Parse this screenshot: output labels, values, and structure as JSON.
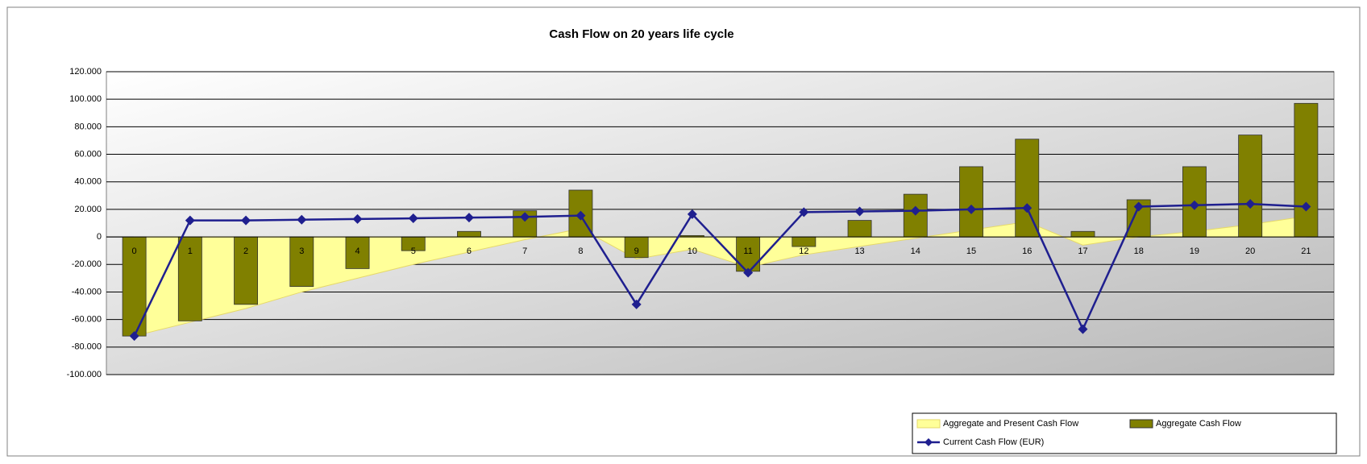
{
  "chart_data": {
    "type": "bar",
    "title": "Cash Flow on 20 years life cycle",
    "categories": [
      "0",
      "1",
      "2",
      "3",
      "4",
      "5",
      "6",
      "7",
      "8",
      "9",
      "10",
      "11",
      "12",
      "13",
      "14",
      "15",
      "16",
      "17",
      "18",
      "19",
      "20",
      "21"
    ],
    "series": [
      {
        "name": "Aggregate and Present Cash Flow",
        "type": "area",
        "color": "#ffff99",
        "values": [
          -72000,
          -62000,
          -52000,
          -40000,
          -30000,
          -20000,
          -11000,
          -2000,
          6000,
          -16000,
          -9000,
          -22000,
          -13000,
          -7000,
          -1000,
          5000,
          11000,
          -6000,
          0,
          4000,
          9000,
          15000
        ]
      },
      {
        "name": "Aggregate Cash Flow",
        "type": "bar",
        "color": "#808000",
        "values": [
          -72000,
          -61000,
          -49000,
          -36000,
          -23000,
          -10000,
          4000,
          19000,
          34000,
          -15000,
          1000,
          -25000,
          -7000,
          12000,
          31000,
          51000,
          71000,
          4000,
          27000,
          51000,
          74000,
          97000
        ]
      },
      {
        "name": "Current Cash Flow  (EUR)",
        "type": "line",
        "color": "#1f1f8f",
        "values": [
          -72000,
          12000,
          12000,
          12500,
          13000,
          13500,
          14000,
          14500,
          15500,
          -49000,
          16500,
          -26000,
          18000,
          18500,
          19000,
          20000,
          21000,
          -67000,
          22000,
          23000,
          24000,
          22000
        ]
      }
    ],
    "ylim": [
      -100000,
      120000
    ],
    "yticks": [
      {
        "value": -100000,
        "label": "-100.000"
      },
      {
        "value": -80000,
        "label": "-80.000"
      },
      {
        "value": -60000,
        "label": "-60.000"
      },
      {
        "value": -40000,
        "label": "-40.000"
      },
      {
        "value": -20000,
        "label": "-20.000"
      },
      {
        "value": 0,
        "label": "0"
      },
      {
        "value": 20000,
        "label": "20.000"
      },
      {
        "value": 40000,
        "label": "40.000"
      },
      {
        "value": 60000,
        "label": "60.000"
      },
      {
        "value": 80000,
        "label": "80.000"
      },
      {
        "value": 100000,
        "label": "100.000"
      },
      {
        "value": 120000,
        "label": "120.000"
      }
    ],
    "grid": true,
    "legend": "bottom-right"
  }
}
